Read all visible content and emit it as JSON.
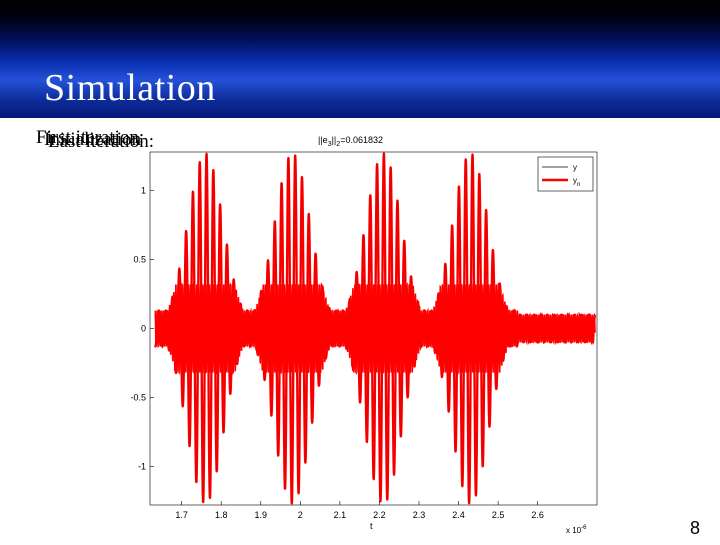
{
  "slide": {
    "title": "Simulation",
    "overlapping_text": [
      "First iteration:",
      "Initialization",
      "Last iteration:"
    ],
    "page_number": "8"
  },
  "colors": {
    "banner": "#1a3fc0",
    "series_y": "#000000",
    "series_yn": "#ff0000"
  },
  "chart_data": {
    "type": "line",
    "title": "||e3||2=0.061832",
    "title_main": "||e",
    "title_sub1": "3",
    "title_mid": "||",
    "title_sub2": "2",
    "title_tail": "=0.061832",
    "xlabel": "t",
    "x_exponent": "x 10",
    "x_exponent_power": "-6",
    "xlim": [
      1.62,
      2.75
    ],
    "ylim": [
      -1.28,
      1.28
    ],
    "x_ticks": [
      "1.7",
      "1.8",
      "1.9",
      "2",
      "2.1",
      "2.2",
      "2.3",
      "2.4",
      "2.5",
      "2.6"
    ],
    "x_tick_values": [
      1.7,
      1.8,
      1.9,
      2.0,
      2.1,
      2.2,
      2.3,
      2.4,
      2.5,
      2.6
    ],
    "y_ticks": [
      "1",
      "0.5",
      "0",
      "-0.5",
      "-1"
    ],
    "y_tick_values": [
      1,
      0.5,
      0,
      -0.5,
      -1
    ],
    "grid": false,
    "legend_position": "top-right",
    "series": [
      {
        "name": "y",
        "legend_main": "y",
        "legend_sub": "",
        "color": "#000000"
      },
      {
        "name": "yn",
        "legend_main": "y",
        "legend_sub": "n",
        "color": "#ff0000"
      }
    ],
    "envelope": {
      "description_points": "bursts of oscillation between t and amplitude peaks",
      "burst_centers": [
        1.76,
        1.98,
        2.21,
        2.43
      ],
      "burst_peak_amplitude": [
        1.27,
        1.27,
        1.27,
        1.27
      ],
      "tail_center": 2.47,
      "tail_amplitude": 0.32,
      "base_amplitude": 0.13
    }
  }
}
